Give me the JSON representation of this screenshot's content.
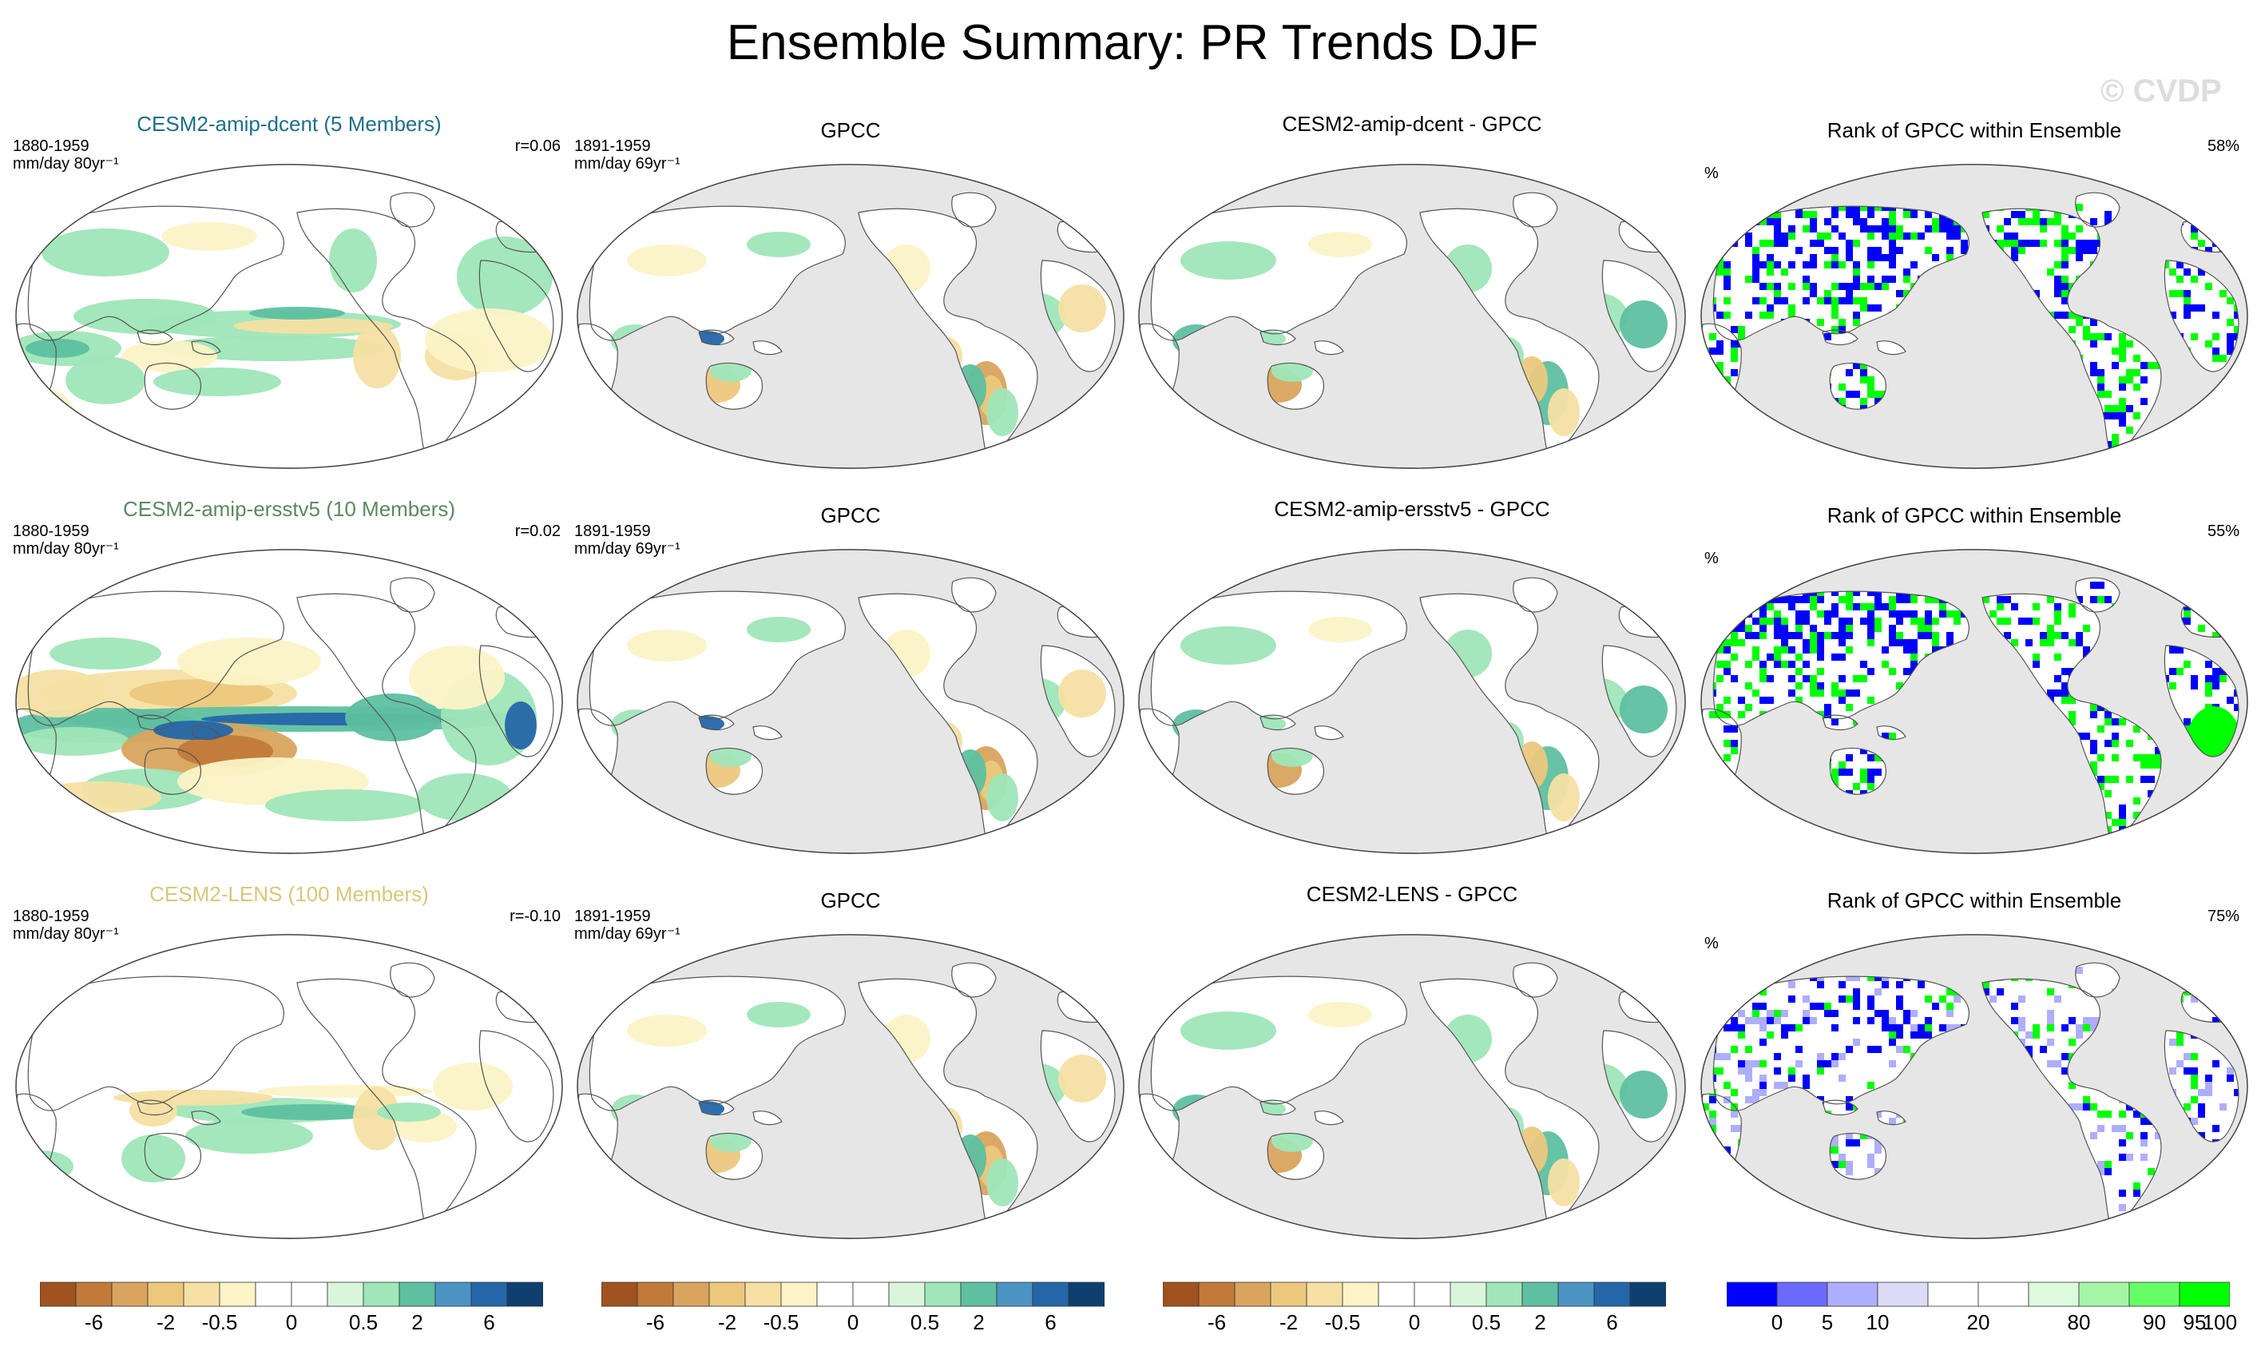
{
  "title": "Ensemble Summary: PR Trends DJF",
  "watermark": "© CVDP",
  "trend_colorbar": {
    "colors": [
      "#a0521f",
      "#c17a3a",
      "#d9a45e",
      "#ecc87d",
      "#f6e0a3",
      "#fcf3c6",
      "#ffffff",
      "#ffffff",
      "#d9f5dc",
      "#9fe6b8",
      "#5ec0a0",
      "#4a94c4",
      "#2466a8",
      "#0e3f6e"
    ],
    "labels": [
      "-6",
      "-2",
      "-0.5",
      "0",
      "0.5",
      "2",
      "6"
    ]
  },
  "rank_colorbar": {
    "colors": [
      "#0000ff",
      "#6a6aff",
      "#aeaeff",
      "#dcdcf6",
      "#ffffff",
      "#ffffff",
      "#dcfadc",
      "#a6f5a6",
      "#66ff66",
      "#00ff00"
    ],
    "labels": [
      "0",
      "5",
      "10",
      "20",
      "80",
      "90",
      "95",
      "100"
    ]
  },
  "rows": [
    {
      "ensemble": {
        "title": "CESM2-amip-dcent (5 Members)",
        "title_color": "#1f6f8b",
        "period": "1880-1959",
        "units": "mm/day 80yr⁻¹",
        "corr": "r=0.06",
        "pattern": "dcent"
      },
      "gpcc": {
        "title": "GPCC",
        "period": "1891-1959",
        "units": "mm/day 69yr⁻¹"
      },
      "diff": {
        "title": "CESM2-amip-dcent - GPCC"
      },
      "rank": {
        "title": "Rank of GPCC within Ensemble",
        "unit": "%",
        "pct": "58%"
      }
    },
    {
      "ensemble": {
        "title": "CESM2-amip-ersstv5 (10 Members)",
        "title_color": "#5b8a5e",
        "period": "1880-1959",
        "units": "mm/day 80yr⁻¹",
        "corr": "r=0.02",
        "pattern": "ersst"
      },
      "gpcc": {
        "title": "GPCC",
        "period": "1891-1959",
        "units": "mm/day 69yr⁻¹"
      },
      "diff": {
        "title": "CESM2-amip-ersstv5 - GPCC"
      },
      "rank": {
        "title": "Rank of GPCC within Ensemble",
        "unit": "%",
        "pct": "55%"
      }
    },
    {
      "ensemble": {
        "title": "CESM2-LENS (100 Members)",
        "title_color": "#d8c77a",
        "period": "1880-1959",
        "units": "mm/day 80yr⁻¹",
        "corr": "r=-0.10",
        "pattern": "lens"
      },
      "gpcc": {
        "title": "GPCC",
        "period": "1891-1959",
        "units": "mm/day 69yr⁻¹"
      },
      "diff": {
        "title": "CESM2-LENS - GPCC"
      },
      "rank": {
        "title": "Rank of GPCC within Ensemble",
        "unit": "%",
        "pct": "75%"
      }
    }
  ]
}
